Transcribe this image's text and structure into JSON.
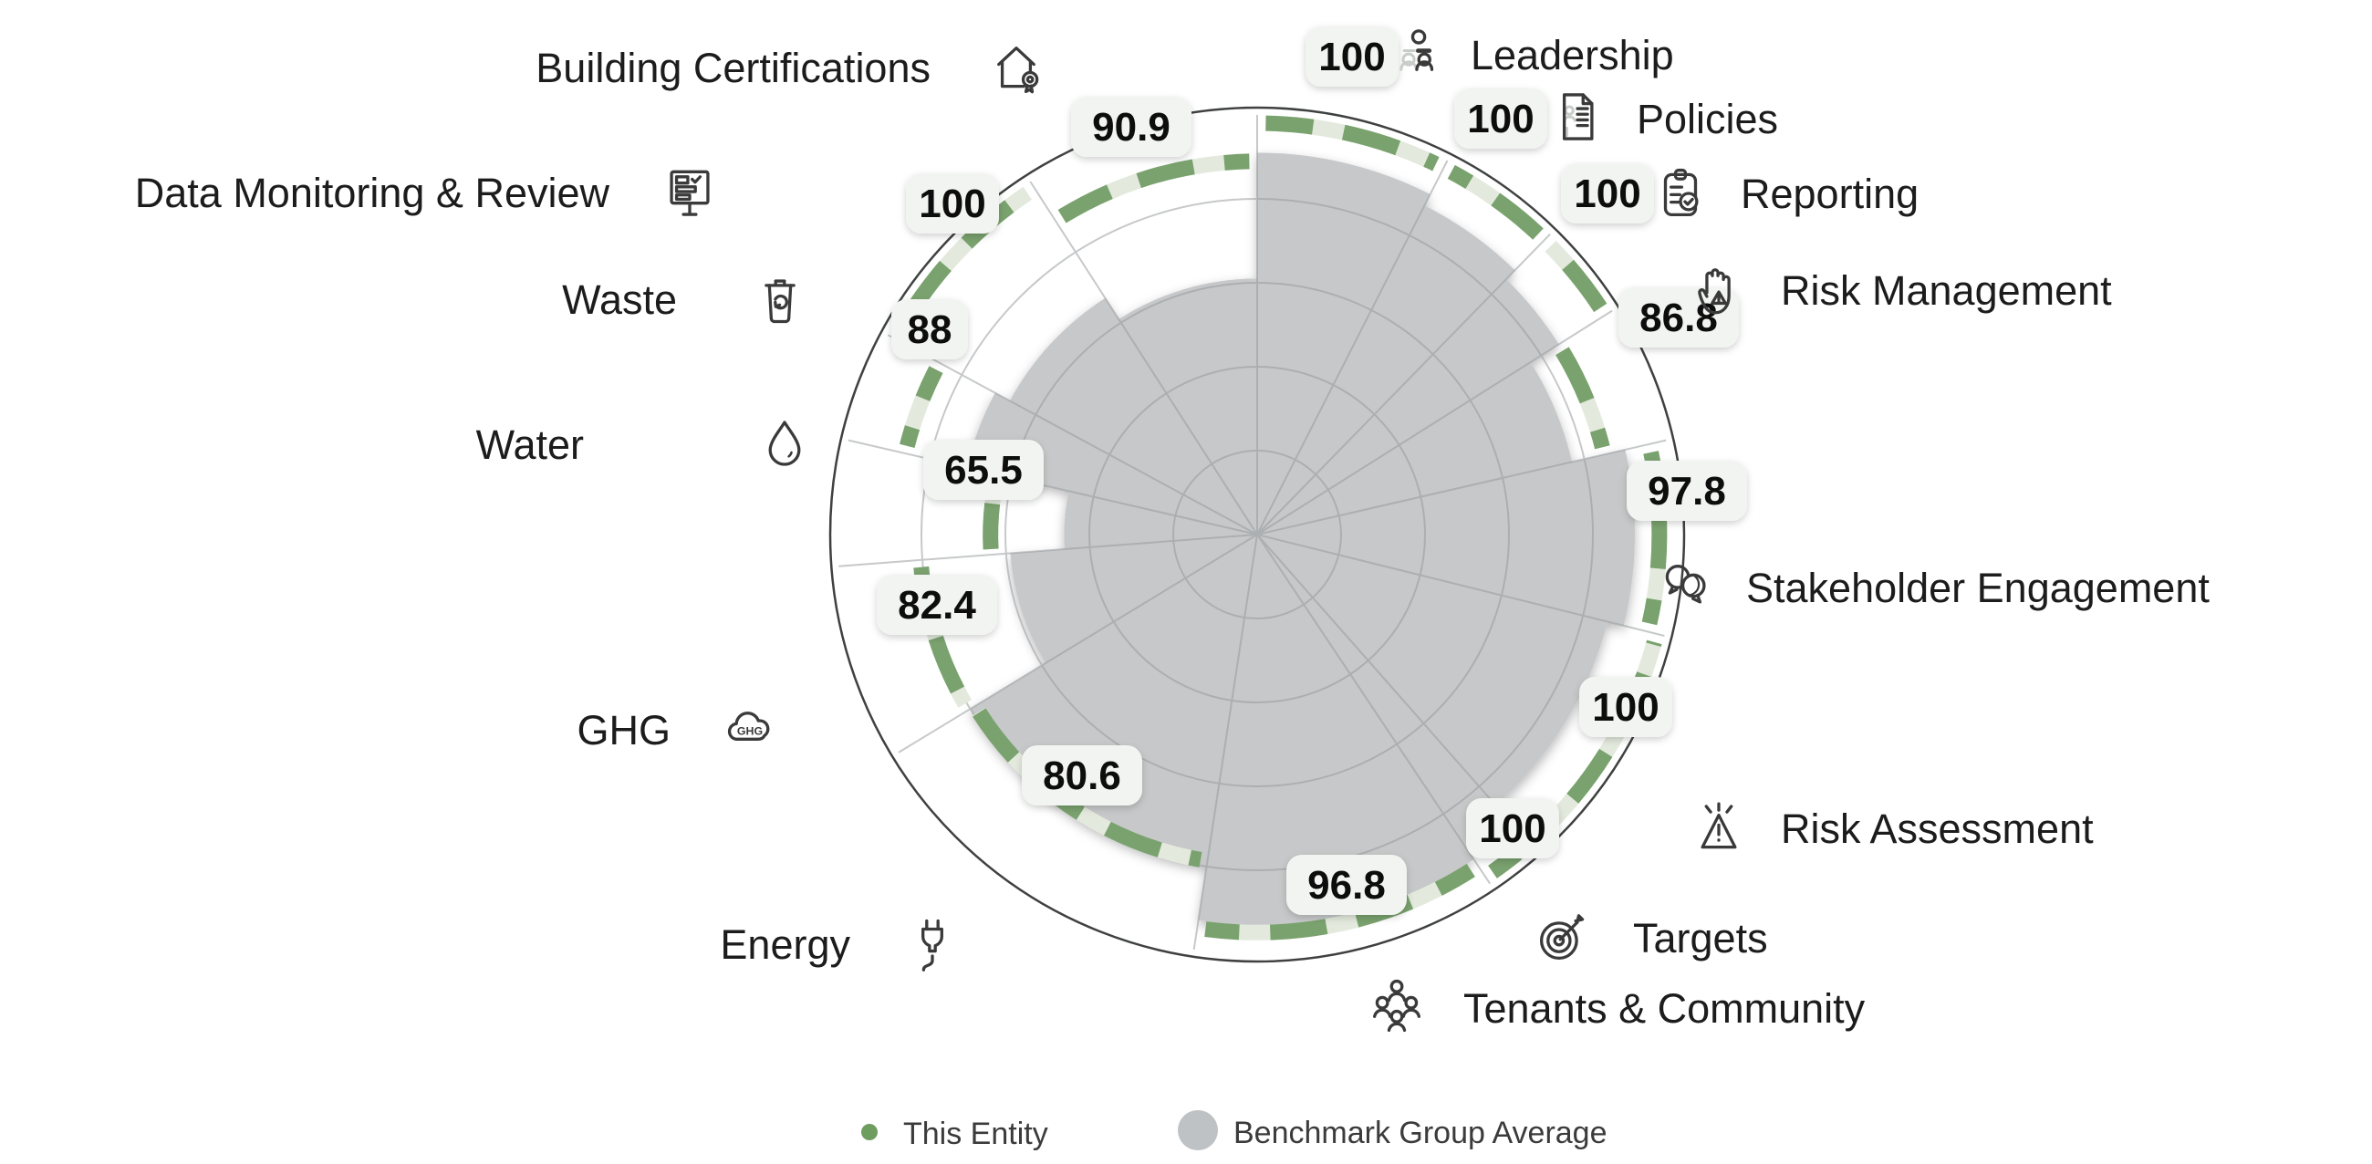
{
  "page": {
    "background": "#ffffff"
  },
  "legend": {
    "this_entity": "This Entity",
    "benchmark": "Benchmark Group Average",
    "this_entity_color": "#6f9d60",
    "benchmark_color": "#bec2c5"
  },
  "colors": {
    "entity_arc_green": "#7aa26e",
    "entity_arc_pale": "#e3eadd",
    "benchmark_gray": "#c6c8c9",
    "gridline": "#989c9f",
    "outer_ring": "#3f4040",
    "badge_background": "#f2f4f1",
    "icon_stroke": "#3a3a3a"
  },
  "chart_data": {
    "type": "bar",
    "subtype": "polar-sector-benchmark (radial bars by ESG aspect)",
    "title": "",
    "unit": "score 0-100",
    "rings": [
      20,
      40,
      60,
      80,
      100
    ],
    "legend_position": "bottom",
    "series": [
      {
        "name": "This Entity",
        "style": "green dashed arc at score radius"
      },
      {
        "name": "Benchmark Group Average",
        "style": "gray filled sector"
      }
    ],
    "categories": [
      {
        "id": "leadership",
        "label": "Leadership",
        "value": 100,
        "value_label": "100",
        "benchmark_est": 91,
        "sector_weight": 7,
        "icon": "org-chart-people-icon"
      },
      {
        "id": "policies",
        "label": "Policies",
        "value": 100,
        "value_label": "100",
        "benchmark_est": 88,
        "sector_weight": 4.5,
        "icon": "document-icon"
      },
      {
        "id": "reporting",
        "label": "Reporting",
        "value": 100,
        "value_label": "100",
        "benchmark_est": 85,
        "sector_weight": 3.5,
        "icon": "clipboard-check-icon"
      },
      {
        "id": "risk-management",
        "label": "Risk Management",
        "value": 86.8,
        "value_label": "86.8",
        "benchmark_est": 77,
        "sector_weight": 5,
        "icon": "hand-warning-icon"
      },
      {
        "id": "stakeholder-engagement",
        "label": "Stakeholder Engagement",
        "value": 97.8,
        "value_label": "97.8",
        "benchmark_est": 90,
        "sector_weight": 7,
        "icon": "speech-bubbles-icon"
      },
      {
        "id": "risk-assessment",
        "label": "Risk Assessment",
        "value": 100,
        "value_label": "100",
        "benchmark_est": 86,
        "sector_weight": 9,
        "icon": "warning-triangle-icon"
      },
      {
        "id": "targets",
        "label": "Targets",
        "value": 100,
        "value_label": "100",
        "benchmark_est": 88,
        "sector_weight": 2,
        "icon": "dartboard-icon"
      },
      {
        "id": "tenants-community",
        "label": "Tenants & Community",
        "value": 96.8,
        "value_label": "96.8",
        "benchmark_est": 93,
        "sector_weight": 11,
        "icon": "people-group-icon"
      },
      {
        "id": "energy",
        "label": "Energy",
        "value": 80.6,
        "value_label": "80.6",
        "benchmark_est": 80,
        "sector_weight": 13,
        "icon": "power-plug-icon"
      },
      {
        "id": "ghg",
        "label": "GHG",
        "value": 82.4,
        "value_label": "82.4",
        "benchmark_est": 59,
        "sector_weight": 7,
        "icon": "ghg-cloud-icon"
      },
      {
        "id": "water",
        "label": "Water",
        "value": 65.5,
        "value_label": "65.5",
        "benchmark_est": 46,
        "sector_weight": 4.5,
        "icon": "water-drop-icon"
      },
      {
        "id": "waste",
        "label": "Waste",
        "value": 88,
        "value_label": "88",
        "benchmark_est": 71,
        "sector_weight": 4,
        "icon": "recycle-bin-icon"
      },
      {
        "id": "data-monitoring",
        "label": "Data Monitoring & Review",
        "value": 100,
        "value_label": "100",
        "benchmark_est": 67,
        "sector_weight": 7.5,
        "icon": "monitoring-board-icon"
      },
      {
        "id": "building-certifications",
        "label": "Building Certifications",
        "value": 90.9,
        "value_label": "90.9",
        "benchmark_est": 61,
        "sector_weight": 8.5,
        "icon": "house-certificate-icon"
      }
    ]
  }
}
